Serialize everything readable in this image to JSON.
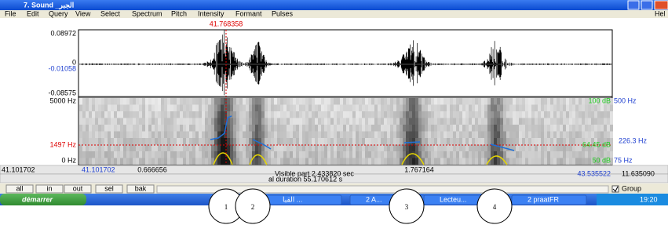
{
  "window": {
    "title": "7. Sound _الجبر",
    "menu": [
      "File",
      "Edit",
      "Query",
      "View",
      "Select",
      "Spectrum",
      "Pitch",
      "Intensity",
      "Formant",
      "Pulses",
      "Hel"
    ]
  },
  "cursor_time": "41.768358",
  "waveform": {
    "top": "0.08972",
    "zero": "0",
    "cursor_value": "-0.01058",
    "bottom": "-0.08575"
  },
  "spectrogram": {
    "top": "5000 Hz",
    "cursor_frequency": "1497 Hz",
    "bottom": "0 Hz",
    "intensity_top": "100 dB",
    "pitch_top": "500 Hz",
    "pitch_cursor": "226.3 Hz",
    "intensity_cursor": "64.45 dB",
    "intensity_bottom": "50 dB",
    "pitch_bottom": "75 Hz"
  },
  "time_bar": {
    "window_start": "41.101702",
    "visible_start": "41.101702",
    "left_part": "0.666656",
    "visible_part": "Visible part 2.433820 sec",
    "right_part": "1.767164",
    "visible_end": "43.535522",
    "window_end": "11.635090"
  },
  "duration_bar": "al duration 55.170612 s",
  "buttons": [
    "all",
    "in",
    "out",
    "sel",
    "bak"
  ],
  "group": "Group",
  "taskbar": {
    "start": "démarrer",
    "items": [
      "القبا ...",
      "2 A...",
      "Lecteu...",
      "2 praat"
    ],
    "language": "FR",
    "clock": "19:20"
  },
  "callouts": [
    "1",
    "2",
    "3",
    "4"
  ]
}
